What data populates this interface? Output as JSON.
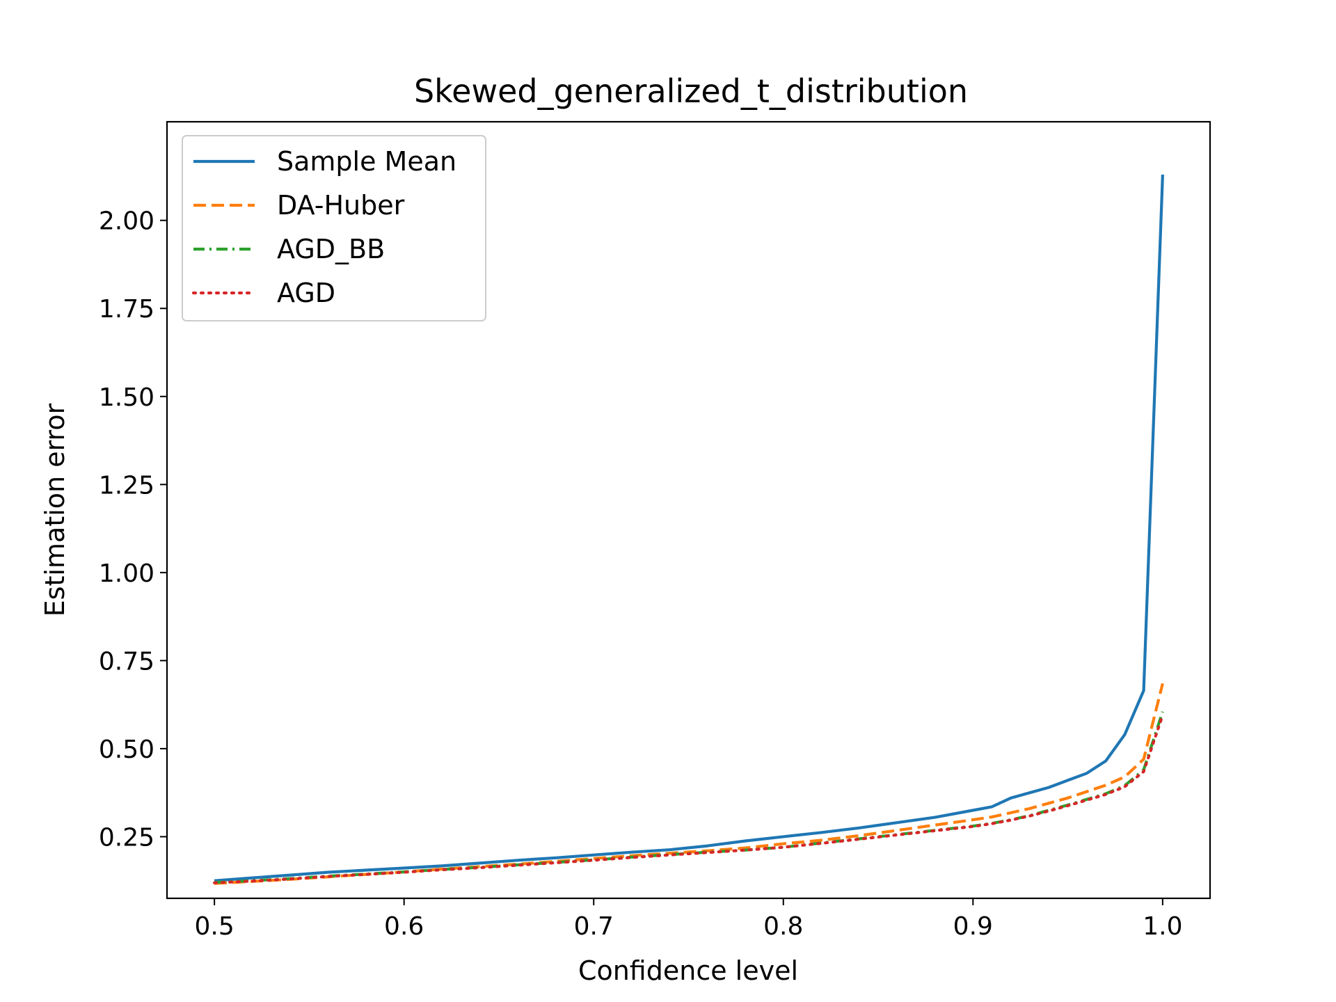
{
  "chart_data": {
    "type": "line",
    "title": "Skewed_generalized_t_distribution",
    "xlabel": "Confidence level",
    "ylabel": "Estimation error",
    "xlim": [
      0.475,
      1.025
    ],
    "ylim": [
      0.075,
      2.28
    ],
    "xticks": [
      0.5,
      0.6,
      0.7,
      0.8,
      0.9,
      1.0
    ],
    "xtick_labels": [
      "0.5",
      "0.6",
      "0.7",
      "0.8",
      "0.9",
      "1.0"
    ],
    "yticks": [
      0.25,
      0.5,
      0.75,
      1.0,
      1.25,
      1.5,
      1.75,
      2.0
    ],
    "ytick_labels": [
      "0.25",
      "0.50",
      "0.75",
      "1.00",
      "1.25",
      "1.50",
      "1.75",
      "2.00"
    ],
    "grid": false,
    "legend_position": "upper-left",
    "x": [
      0.5,
      0.52,
      0.54,
      0.56,
      0.58,
      0.6,
      0.62,
      0.64,
      0.66,
      0.68,
      0.7,
      0.72,
      0.74,
      0.76,
      0.78,
      0.8,
      0.82,
      0.84,
      0.86,
      0.88,
      0.9,
      0.91,
      0.92,
      0.93,
      0.94,
      0.95,
      0.96,
      0.97,
      0.98,
      0.99,
      1.0
    ],
    "series": [
      {
        "name": "Sample Mean",
        "color": "#1f77b4",
        "style": "solid",
        "values": [
          0.125,
          0.133,
          0.141,
          0.149,
          0.155,
          0.161,
          0.167,
          0.175,
          0.183,
          0.19,
          0.198,
          0.206,
          0.213,
          0.224,
          0.238,
          0.25,
          0.262,
          0.275,
          0.29,
          0.305,
          0.325,
          0.335,
          0.36,
          0.375,
          0.39,
          0.41,
          0.43,
          0.465,
          0.54,
          0.665,
          2.13
        ]
      },
      {
        "name": "DA-Huber",
        "color": "#ff7f0e",
        "style": "dashed",
        "values": [
          0.117,
          0.123,
          0.129,
          0.136,
          0.143,
          0.15,
          0.158,
          0.165,
          0.172,
          0.18,
          0.188,
          0.196,
          0.203,
          0.21,
          0.218,
          0.23,
          0.24,
          0.253,
          0.268,
          0.283,
          0.298,
          0.306,
          0.318,
          0.33,
          0.345,
          0.36,
          0.378,
          0.396,
          0.42,
          0.47,
          0.685
        ]
      },
      {
        "name": "AGD_BB",
        "color": "#2ca02c",
        "style": "dashdot",
        "values": [
          0.12,
          0.125,
          0.131,
          0.138,
          0.144,
          0.15,
          0.157,
          0.163,
          0.17,
          0.177,
          0.184,
          0.192,
          0.199,
          0.206,
          0.212,
          0.22,
          0.232,
          0.244,
          0.256,
          0.268,
          0.28,
          0.288,
          0.298,
          0.31,
          0.325,
          0.34,
          0.356,
          0.372,
          0.395,
          0.44,
          0.605
        ]
      },
      {
        "name": "AGD",
        "color": "#d62728",
        "style": "dotted",
        "values": [
          0.119,
          0.124,
          0.13,
          0.137,
          0.143,
          0.149,
          0.156,
          0.162,
          0.169,
          0.176,
          0.183,
          0.191,
          0.198,
          0.205,
          0.212,
          0.22,
          0.231,
          0.243,
          0.255,
          0.267,
          0.279,
          0.287,
          0.297,
          0.309,
          0.323,
          0.338,
          0.354,
          0.37,
          0.392,
          0.435,
          0.595
        ]
      }
    ]
  }
}
